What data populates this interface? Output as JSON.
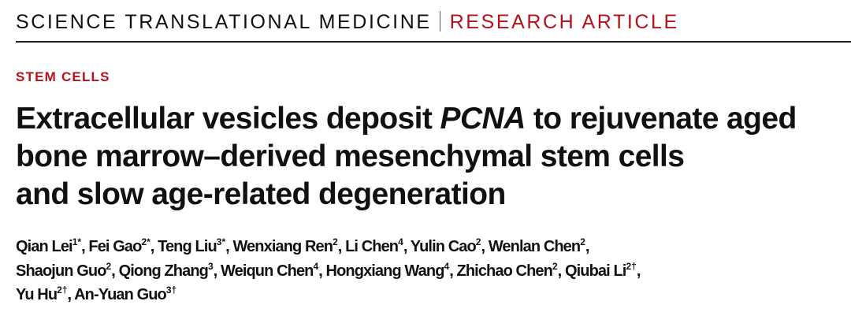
{
  "header": {
    "journal": "SCIENCE TRANSLATIONAL MEDICINE",
    "article_type": "RESEARCH ARTICLE"
  },
  "section": "STEM CELLS",
  "title": {
    "part1": "Extracellular vesicles deposit ",
    "italic": "PCNA",
    "part2": " to rejuvenate aged",
    "line2": "bone marrow–derived mesenchymal stem cells",
    "line3": "and slow age-related degeneration"
  },
  "authors": [
    {
      "name": "Qian Lei",
      "sup": "1*",
      "line": 1
    },
    {
      "name": "Fei Gao",
      "sup": "2*",
      "line": 1
    },
    {
      "name": "Teng Liu",
      "sup": "3*",
      "line": 1
    },
    {
      "name": "Wenxiang Ren",
      "sup": "2",
      "line": 1
    },
    {
      "name": "Li Chen",
      "sup": "4",
      "line": 1
    },
    {
      "name": "Yulin Cao",
      "sup": "2",
      "line": 1
    },
    {
      "name": "Wenlan Chen",
      "sup": "2",
      "line": 1
    },
    {
      "name": "Shaojun Guo",
      "sup": "2",
      "line": 2
    },
    {
      "name": "Qiong Zhang",
      "sup": "3",
      "line": 2
    },
    {
      "name": "Weiqun Chen",
      "sup": "4",
      "line": 2
    },
    {
      "name": "Hongxiang Wang",
      "sup": "4",
      "line": 2
    },
    {
      "name": "Zhichao Chen",
      "sup": "2",
      "line": 2
    },
    {
      "name": "Qiubai Li",
      "sup": "2†",
      "line": 2
    },
    {
      "name": "Yu Hu",
      "sup": "2†",
      "line": 3
    },
    {
      "name": "An-Yuan Guo",
      "sup": "3†",
      "line": 3
    }
  ],
  "colors": {
    "accent": "#b5121b",
    "text": "#111111"
  }
}
